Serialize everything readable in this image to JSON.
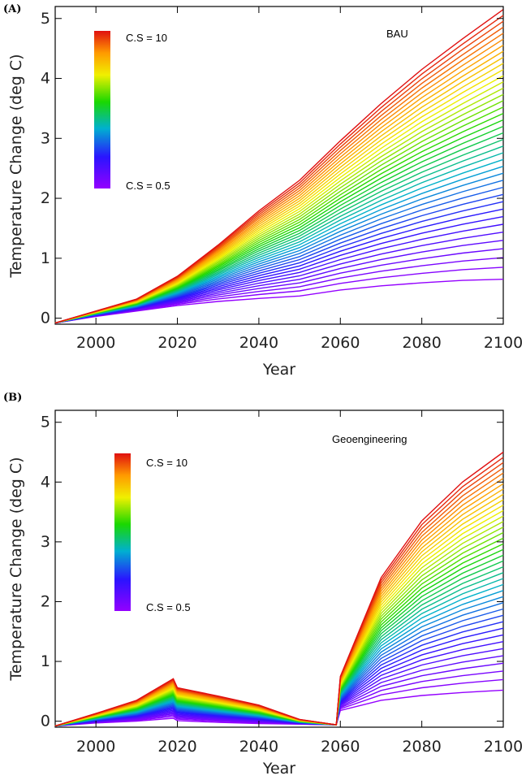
{
  "chart_data": [
    {
      "type": "line",
      "panel_label": "(A)",
      "annotation": "BAU",
      "xlabel": "Year",
      "ylabel": "Temperature Change (deg C)",
      "xlim": [
        1990,
        2100
      ],
      "ylim": [
        -0.1,
        5.2
      ],
      "xticks": [
        2000,
        2020,
        2040,
        2060,
        2080,
        2100
      ],
      "yticks": [
        0,
        1,
        2,
        3,
        4,
        5
      ],
      "colorbar": {
        "top_label": "C.S = 10",
        "bottom_label": "C.S = 0.5",
        "colormap": "rainbow"
      },
      "n_curves": 40,
      "curves_note_cs_range": [
        0.5,
        10
      ],
      "endpoint_2100_range": [
        0.65,
        5.15
      ],
      "x": [
        1990,
        2000,
        2010,
        2020,
        2030,
        2040,
        2050,
        2060,
        2070,
        2080,
        2090,
        2100
      ],
      "series": [
        {
          "values": [
            -0.08,
            0.03,
            0.12,
            0.21,
            0.28,
            0.33,
            0.37,
            0.47,
            0.54,
            0.59,
            0.63,
            0.65
          ]
        },
        {
          "values": [
            -0.08,
            0.12,
            0.32,
            0.7,
            1.22,
            1.79,
            2.3,
            2.96,
            3.58,
            4.15,
            4.66,
            5.15
          ]
        }
      ]
    },
    {
      "type": "line",
      "panel_label": "(B)",
      "annotation": "Geoengineering",
      "xlabel": "Year",
      "ylabel": "Temperature Change (deg C)",
      "xlim": [
        1990,
        2100
      ],
      "ylim": [
        -0.1,
        5.2
      ],
      "xticks": [
        2000,
        2020,
        2040,
        2060,
        2080,
        2100
      ],
      "yticks": [
        0,
        1,
        2,
        3,
        4,
        5
      ],
      "colorbar": {
        "top_label": "C.S = 10",
        "bottom_label": "C.S = 0.5",
        "colormap": "rainbow"
      },
      "n_curves": 40,
      "curves_note_cs_range": [
        0.5,
        10
      ],
      "endpoint_2100_range": [
        0.5,
        4.5
      ],
      "x": [
        1990,
        2000,
        2010,
        2019,
        2020,
        2030,
        2040,
        2050,
        2059,
        2060,
        2070,
        2080,
        2090,
        2100
      ],
      "series": [
        {
          "values": [
            -0.08,
            -0.03,
            0.0,
            0.05,
            0.01,
            -0.02,
            -0.04,
            -0.05,
            -0.06,
            0.18,
            0.35,
            0.43,
            0.48,
            0.52
          ]
        },
        {
          "values": [
            -0.08,
            0.13,
            0.35,
            0.71,
            0.56,
            0.42,
            0.27,
            0.03,
            -0.06,
            0.75,
            2.4,
            3.35,
            4.0,
            4.5
          ]
        }
      ]
    }
  ]
}
